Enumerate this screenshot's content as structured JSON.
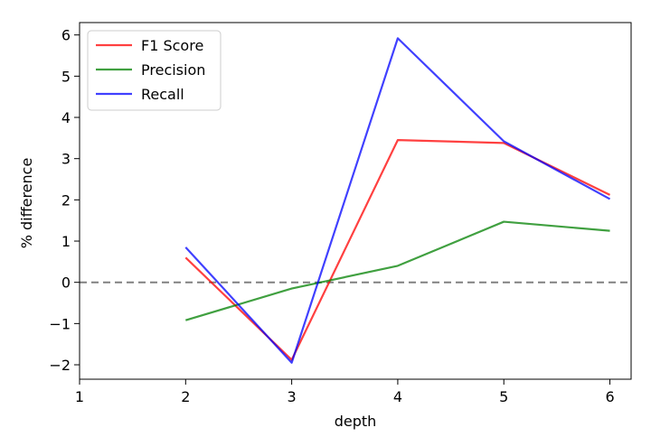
{
  "chart_data": {
    "type": "line",
    "title": "",
    "xlabel": "depth",
    "ylabel": "% difference",
    "xlim": [
      1,
      6.2
    ],
    "ylim": [
      -2.35,
      6.3
    ],
    "xticks": [
      "1",
      "2",
      "3",
      "4",
      "5",
      "6"
    ],
    "yticks": [
      "−2",
      "−1",
      "0",
      "1",
      "2",
      "3",
      "4",
      "5",
      "6"
    ],
    "grid": false,
    "legend_position": "top-left",
    "reference_line": {
      "y": 0,
      "style": "dashed",
      "color": "#808080"
    },
    "x": [
      2,
      3,
      4,
      5,
      6
    ],
    "series": [
      {
        "name": "F1 Score",
        "color": "#ff0000",
        "values": [
          0.6,
          -1.88,
          3.45,
          3.38,
          2.12
        ]
      },
      {
        "name": "Precision",
        "color": "#008000",
        "values": [
          -0.92,
          -0.15,
          0.4,
          1.47,
          1.25
        ]
      },
      {
        "name": "Recall",
        "color": "#0000ff",
        "values": [
          0.85,
          -1.95,
          5.92,
          3.42,
          2.02
        ]
      }
    ]
  }
}
